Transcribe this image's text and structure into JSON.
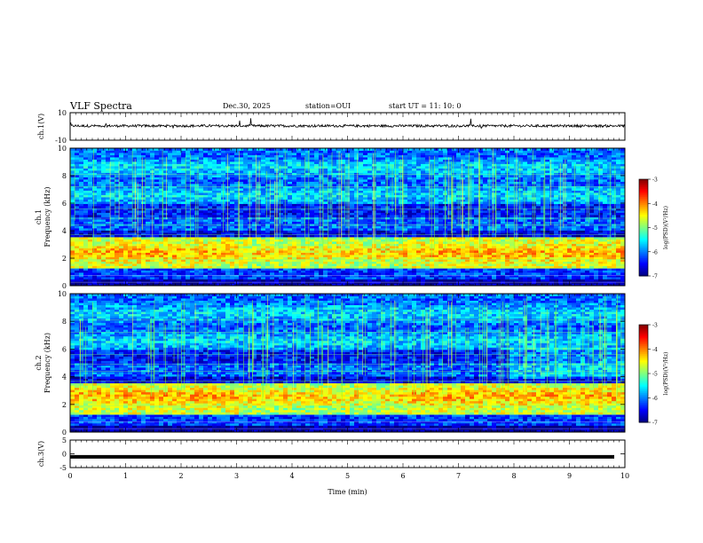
{
  "header": {
    "title": "VLF Spectra",
    "date": "Dec.30, 2025",
    "station": "station=OUI",
    "start_ut": "start  UT  =   11: 10: 0"
  },
  "chart_data": [
    {
      "type": "line",
      "ylabel": "ch.1(V)",
      "ylim": [
        -10,
        10
      ],
      "yticks": [
        "10",
        "-10"
      ],
      "xlim": [
        0,
        10
      ],
      "grid": false,
      "description_value": "waveform centered near 0 V with small spikes"
    },
    {
      "type": "heatmap",
      "ylabel_top": "ch.1",
      "ylabel": "Frequency  (kHz)",
      "ylim": [
        0,
        10
      ],
      "yticks": [
        "0",
        "2",
        "4",
        "6",
        "8",
        "10"
      ],
      "xlim": [
        0,
        10
      ],
      "colorbar": {
        "label": "log(PSD)(V²/Hz)",
        "range": [
          -7,
          -3
        ],
        "ticks": [
          "-3",
          "-4",
          "-5",
          "-6",
          "-7"
        ]
      },
      "colors": {
        "low": "#00008b",
        "mid": "#00ff00",
        "high": "#ff0000"
      }
    },
    {
      "type": "heatmap",
      "ylabel_top": "ch.2",
      "ylabel": "Frequency  (kHz)",
      "ylim": [
        0,
        10
      ],
      "yticks": [
        "0",
        "2",
        "4",
        "6",
        "8",
        "10"
      ],
      "xlim": [
        0,
        10
      ],
      "colorbar": {
        "label": "log(PSD)(V²/Hz)",
        "range": [
          -7,
          -3
        ],
        "ticks": [
          "-3",
          "-4",
          "-5",
          "-6",
          "-7"
        ]
      }
    },
    {
      "type": "line",
      "ylabel": "ch.3(V)",
      "ylim": [
        -5,
        5
      ],
      "yticks": [
        "5",
        "0",
        "-5"
      ],
      "xlim": [
        0,
        10
      ],
      "values_const": -1.1
    }
  ],
  "xaxis": {
    "label": "Time  (min)",
    "ticks": [
      "0",
      "1",
      "2",
      "3",
      "4",
      "5",
      "6",
      "7",
      "8",
      "9",
      "10"
    ],
    "range": [
      0,
      10
    ]
  }
}
